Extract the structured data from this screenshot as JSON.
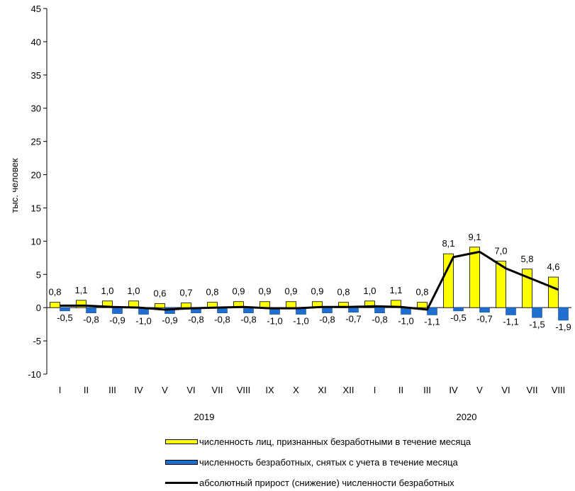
{
  "chart_data": {
    "type": "bar",
    "ylabel": "тыс. человек",
    "ylim": [
      -10,
      45
    ],
    "yticks": [
      -10,
      -5,
      0,
      5,
      10,
      15,
      20,
      25,
      30,
      35,
      40,
      45
    ],
    "categories": [
      "I",
      "II",
      "III",
      "IV",
      "V",
      "VI",
      "VII",
      "VIII",
      "IX",
      "X",
      "XI",
      "XII",
      "I",
      "II",
      "III",
      "IV",
      "V",
      "VI",
      "VII",
      "VIII"
    ],
    "groups": [
      {
        "label": "2019"
      },
      {
        "label": "2020"
      }
    ],
    "series": [
      {
        "name": "численность лиц, признанных безработными в течение месяца",
        "kind": "bar",
        "color": "#FFFF00",
        "values": [
          0.8,
          1.1,
          1.0,
          1.0,
          0.6,
          0.7,
          0.8,
          0.9,
          0.9,
          0.9,
          0.9,
          0.8,
          1.0,
          1.1,
          0.8,
          8.1,
          9.1,
          7.0,
          5.8,
          4.6
        ],
        "labels": [
          "0,8",
          "1,1",
          "1,0",
          "1,0",
          "0,6",
          "0,7",
          "0,8",
          "0,9",
          "0,9",
          "0,9",
          "0,9",
          "0,8",
          "1,0",
          "1,1",
          "0,8",
          "8,1",
          "9,1",
          "7,0",
          "5,8",
          "4,6"
        ]
      },
      {
        "name": "численность безработных, снятых с учета в течение месяца",
        "kind": "bar",
        "color": "#1F6FD0",
        "values": [
          -0.5,
          -0.8,
          -0.9,
          -1.0,
          -0.9,
          -0.8,
          -0.8,
          -0.8,
          -1.0,
          -1.0,
          -0.8,
          -0.7,
          -0.8,
          -1.0,
          -1.1,
          -0.5,
          -0.7,
          -1.1,
          -1.5,
          -1.9
        ],
        "labels": [
          "-0,5",
          "-0,8",
          "-0,9",
          "-1,0",
          "-0,9",
          "-0,8",
          "-0,8",
          "-0,8",
          "-1,0",
          "-1,0",
          "-0,8",
          "-0,7",
          "-0,8",
          "-1,0",
          "-1,1",
          "-0,5",
          "-0,7",
          "-1,1",
          "-1,5",
          "-1,9"
        ]
      },
      {
        "name": "абсолютный прирост (снижение) численности безработных",
        "kind": "line",
        "color": "#000000",
        "values": [
          0.3,
          0.3,
          0.1,
          0.0,
          -0.3,
          -0.1,
          0.0,
          0.1,
          -0.1,
          -0.1,
          0.1,
          0.1,
          0.2,
          0.1,
          -0.3,
          7.6,
          8.4,
          5.9,
          4.3,
          2.7
        ]
      }
    ]
  }
}
